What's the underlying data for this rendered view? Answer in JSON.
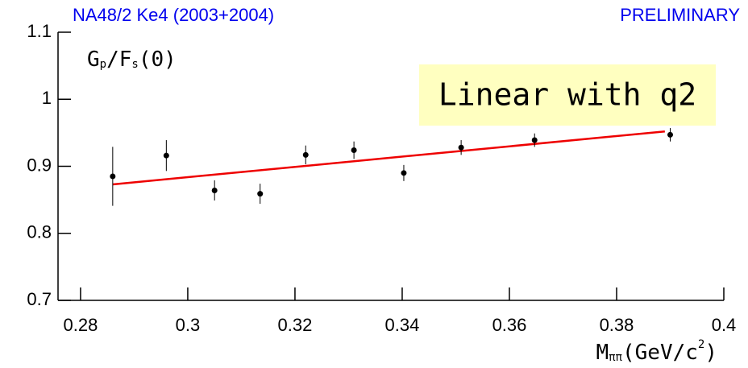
{
  "chart_data": {
    "type": "scatter",
    "title": "NA48/2 Ke4  (2003+2004)",
    "subtitle": "PRELIMINARY",
    "y_label": [
      "G",
      "p",
      "/F",
      "s",
      "(0)"
    ],
    "x_label": [
      "M",
      "ππ",
      "(GeV/c",
      "2",
      ")"
    ],
    "annotation": "Linear with q2",
    "xlim": [
      0.2758,
      0.4
    ],
    "xticks": [
      0.28,
      0.3,
      0.32,
      0.34,
      0.36,
      0.38,
      0.4
    ],
    "ylim": [
      0.7,
      1.1
    ],
    "yticks": [
      0.7,
      0.8,
      0.9,
      1,
      1.1
    ],
    "series": [
      {
        "color": "#000000",
        "x": [
          0.286,
          0.296,
          0.305,
          0.3135,
          0.322,
          0.331,
          0.3403,
          0.351,
          0.3647,
          0.39
        ],
        "values": [
          0.885,
          0.916,
          0.864,
          0.859,
          0.917,
          0.924,
          0.89,
          0.928,
          0.939,
          0.947
        ],
        "errors": [
          0.044,
          0.023,
          0.015,
          0.015,
          0.014,
          0.013,
          0.012,
          0.011,
          0.01,
          0.01
        ]
      }
    ],
    "fit": {
      "color": "#ee0000",
      "x": [
        0.286,
        0.389
      ],
      "values": [
        0.873,
        0.952
      ]
    }
  }
}
